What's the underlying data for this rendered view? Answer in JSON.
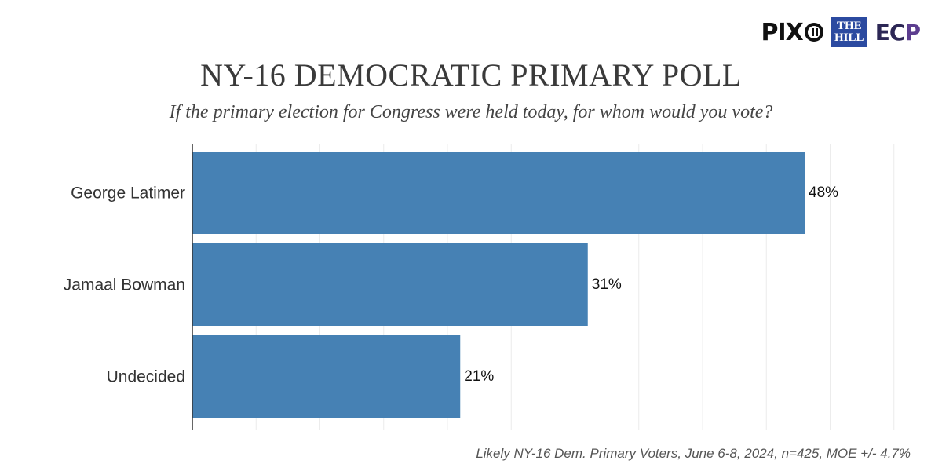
{
  "logos": {
    "pix_text": "PIX",
    "hill_line1": "THE",
    "hill_line2": "HILL",
    "ecp_text": "EC",
    "ecp_accent": "P"
  },
  "chart_data": {
    "type": "bar",
    "orientation": "horizontal",
    "title": "NY-16 DEMOCRATIC PRIMARY POLL",
    "subtitle": "If the primary election for Congress were held today, for whom would you vote?",
    "categories": [
      "George Latimer",
      "Jamaal Bowman",
      "Undecided"
    ],
    "values": [
      48,
      31,
      21
    ],
    "value_labels": [
      "48%",
      "31%",
      "21%"
    ],
    "xlim": [
      0,
      55
    ],
    "grid_step": 5,
    "grid": true,
    "bar_color": "#4681b4",
    "footnote": "Likely NY-16 Dem. Primary Voters, June 6-8, 2024, n=425, MOE +/- 4.7%"
  }
}
